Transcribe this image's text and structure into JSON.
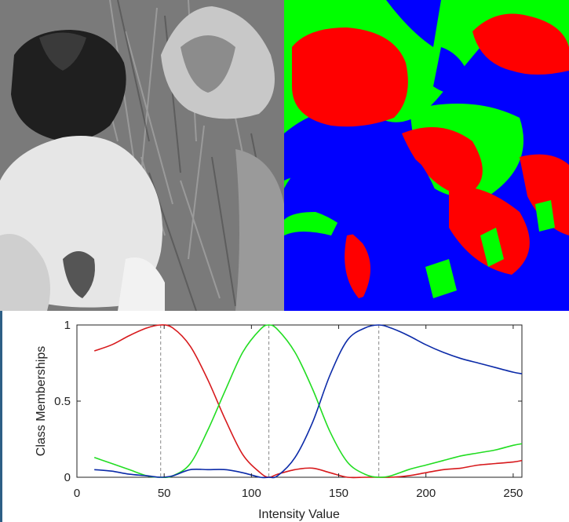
{
  "panels": {
    "left": "grayscale tulip photograph",
    "right": "three-class segmentation map"
  },
  "colors": {
    "class_red": "#d7191c",
    "class_green": "#22dd22",
    "class_blue": "#0b2aa8",
    "seg_red": "#ff0000",
    "seg_green": "#00ff00",
    "seg_blue": "#0000ff"
  },
  "chart_data": {
    "type": "line",
    "xlabel": "Intensity Value",
    "ylabel": "Class Memberships",
    "xlim": [
      0,
      255
    ],
    "ylim": [
      0,
      1
    ],
    "xticks": [
      "0",
      "50",
      "100",
      "150",
      "200",
      "250"
    ],
    "yticks": [
      "0",
      "0.5",
      "1"
    ],
    "grid": false,
    "legend": "none",
    "cluster_centers": [
      48,
      110,
      173
    ],
    "x": [
      10,
      20,
      30,
      40,
      48,
      55,
      65,
      75,
      85,
      95,
      105,
      110,
      115,
      125,
      135,
      145,
      155,
      165,
      173,
      180,
      190,
      200,
      210,
      220,
      230,
      240,
      250,
      255
    ],
    "series": [
      {
        "color": "#d7191c",
        "values": [
          0.83,
          0.87,
          0.93,
          0.98,
          1.0,
          0.98,
          0.86,
          0.64,
          0.38,
          0.15,
          0.03,
          0.0,
          0.02,
          0.05,
          0.06,
          0.03,
          0.0,
          0.0,
          0.0,
          0.0,
          0.01,
          0.03,
          0.05,
          0.06,
          0.08,
          0.09,
          0.1,
          0.11
        ]
      },
      {
        "color": "#22dd22",
        "values": [
          0.13,
          0.09,
          0.05,
          0.01,
          0.0,
          0.01,
          0.09,
          0.31,
          0.57,
          0.82,
          0.97,
          1.0,
          0.97,
          0.82,
          0.58,
          0.3,
          0.1,
          0.02,
          0.0,
          0.01,
          0.05,
          0.08,
          0.11,
          0.14,
          0.16,
          0.18,
          0.21,
          0.22
        ]
      },
      {
        "color": "#0b2aa8",
        "values": [
          0.05,
          0.04,
          0.02,
          0.01,
          0.0,
          0.01,
          0.05,
          0.05,
          0.05,
          0.03,
          0.0,
          0.0,
          0.01,
          0.13,
          0.36,
          0.67,
          0.9,
          0.98,
          1.0,
          0.98,
          0.93,
          0.87,
          0.82,
          0.78,
          0.75,
          0.72,
          0.69,
          0.68
        ]
      }
    ]
  }
}
